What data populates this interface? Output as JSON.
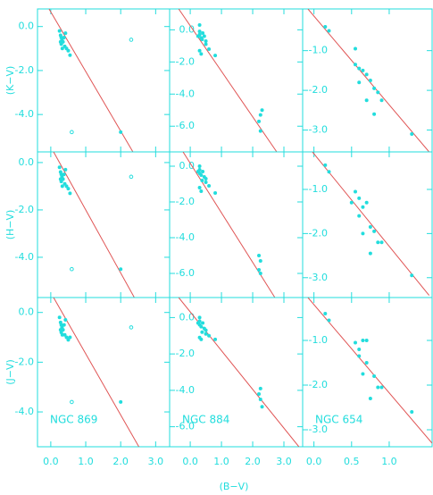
{
  "chart_data": [
    {
      "type": "scatter",
      "color": "#22dddd",
      "ylabel": "(K−V)",
      "x": [
        0.25,
        0.28,
        0.3,
        0.32,
        0.35,
        0.3,
        0.4,
        0.38,
        0.45,
        0.5,
        0.55,
        0.28,
        0.42,
        0.33,
        2.0
      ],
      "values": [
        -0.2,
        -0.4,
        -0.5,
        -0.6,
        -0.7,
        -0.8,
        -0.9,
        -0.5,
        -1.0,
        -1.1,
        -1.3,
        -0.7,
        -0.3,
        -1.0,
        -4.8
      ],
      "open": {
        "x": [
          2.3,
          0.6
        ],
        "values": [
          -0.6,
          -4.8
        ]
      },
      "fit": {
        "color": "#e05555",
        "x": [
          -0.05,
          2.35
        ],
        "values": [
          0.8,
          -5.7
        ]
      },
      "xlim": [
        -0.38,
        3.4
      ],
      "ylim": [
        -5.7,
        0.8
      ],
      "yticks": [
        {
          "value": 0,
          "label": "0.0"
        },
        {
          "value": -2,
          "label": "-2.0"
        },
        {
          "value": -4,
          "label": "-4.0"
        }
      ]
    },
    {
      "type": "scatter",
      "color": "#22dddd",
      "x": [
        0.3,
        0.3,
        0.3,
        0.35,
        0.4,
        0.45,
        0.5,
        0.35,
        0.3,
        0.6,
        0.8,
        0.5,
        0.25,
        0.38,
        2.25,
        2.2,
        2.3,
        2.25
      ],
      "values": [
        0.3,
        -0.1,
        -0.3,
        -0.5,
        -0.2,
        -0.4,
        -0.9,
        -1.5,
        -1.3,
        -1.2,
        -1.6,
        -0.7,
        -0.4,
        -0.6,
        -5.3,
        -5.7,
        -5.0,
        -6.3
      ],
      "fit": {
        "color": "#e05555",
        "x": [
          -0.37,
          2.77
        ],
        "values": [
          1.3,
          -7.6
        ]
      },
      "xlim": [
        -0.66,
        3.6
      ],
      "ylim": [
        -7.6,
        1.3
      ],
      "yticks": [
        {
          "value": 0,
          "label": "0.0"
        },
        {
          "value": -2,
          "label": "-2.0"
        },
        {
          "value": -4,
          "label": "-4.0"
        },
        {
          "value": -6,
          "label": "-6.0"
        }
      ]
    },
    {
      "type": "scatter",
      "color": "#22dddd",
      "x": [
        0.15,
        0.2,
        0.55,
        0.55,
        0.6,
        0.65,
        0.7,
        0.75,
        0.7,
        0.8,
        0.85,
        0.9,
        0.8,
        1.3,
        0.6
      ],
      "values": [
        -0.4,
        -0.5,
        -0.95,
        -1.35,
        -1.45,
        -1.5,
        -1.6,
        -1.75,
        -2.25,
        -1.95,
        -2.05,
        -2.25,
        -2.6,
        -3.1,
        -1.8
      ],
      "fit": {
        "color": "#e05555",
        "x": [
          -0.08,
          1.53
        ],
        "values": [
          0.05,
          -3.55
        ]
      },
      "xlim": [
        -0.15,
        1.57
      ],
      "ylim": [
        -3.55,
        0.05
      ],
      "yticks": [
        {
          "value": -1,
          "label": "-1.0"
        },
        {
          "value": -2,
          "label": "-2.0"
        },
        {
          "value": -3,
          "label": "-3.0"
        }
      ]
    },
    {
      "type": "scatter",
      "color": "#22dddd",
      "ylabel": "(H−V)",
      "x": [
        0.25,
        0.28,
        0.3,
        0.32,
        0.35,
        0.3,
        0.4,
        0.38,
        0.45,
        0.5,
        0.55,
        0.28,
        0.42,
        0.33,
        2.0
      ],
      "values": [
        -0.2,
        -0.4,
        -0.5,
        -0.6,
        -0.7,
        -0.8,
        -0.9,
        -0.5,
        -1.0,
        -1.1,
        -1.3,
        -0.7,
        -0.3,
        -1.0,
        -4.5
      ],
      "open": {
        "x": [
          2.3,
          0.6
        ],
        "values": [
          -0.6,
          -4.5
        ]
      },
      "fit": {
        "color": "#e05555",
        "x": [
          0.08,
          2.39
        ],
        "values": [
          0.45,
          -5.7
        ]
      },
      "xlim": [
        -0.38,
        3.4
      ],
      "ylim": [
        -5.7,
        0.45
      ],
      "yticks": [
        {
          "value": 0,
          "label": "0.0"
        },
        {
          "value": -2,
          "label": "-2.0"
        },
        {
          "value": -4,
          "label": "-4.0"
        }
      ]
    },
    {
      "type": "scatter",
      "color": "#22dddd",
      "x": [
        0.3,
        0.3,
        0.3,
        0.35,
        0.4,
        0.45,
        0.5,
        0.35,
        0.3,
        0.6,
        0.8,
        0.5,
        0.25,
        0.38,
        2.2,
        2.25,
        2.2,
        2.25
      ],
      "values": [
        0.0,
        -0.2,
        -0.4,
        -0.5,
        -0.3,
        -0.6,
        -0.9,
        -1.4,
        -1.2,
        -1.1,
        -1.5,
        -0.7,
        -0.3,
        -0.8,
        -5.0,
        -5.3,
        -5.8,
        -6.0
      ],
      "fit": {
        "color": "#e05555",
        "x": [
          -0.23,
          2.71
        ],
        "values": [
          0.8,
          -7.35
        ]
      },
      "xlim": [
        -0.66,
        3.6
      ],
      "ylim": [
        -7.35,
        0.8
      ],
      "yticks": [
        {
          "value": 0,
          "label": "0.0"
        },
        {
          "value": -2,
          "label": "-2.0"
        },
        {
          "value": -4,
          "label": "-4.0"
        },
        {
          "value": -6,
          "label": "-6.0"
        }
      ]
    },
    {
      "type": "scatter",
      "color": "#22dddd",
      "x": [
        0.15,
        0.2,
        0.55,
        0.5,
        0.6,
        0.65,
        0.7,
        0.6,
        0.65,
        0.75,
        0.8,
        0.85,
        0.9,
        0.75,
        1.3
      ],
      "values": [
        -0.45,
        -0.6,
        -1.05,
        -1.3,
        -1.2,
        -1.4,
        -1.3,
        -1.6,
        -2.0,
        -1.85,
        -1.95,
        -2.2,
        -2.2,
        -2.45,
        -2.95
      ],
      "fit": {
        "color": "#e05555",
        "x": [
          -0.02,
          1.53
        ],
        "values": [
          -0.15,
          -3.4
        ]
      },
      "xlim": [
        -0.15,
        1.57
      ],
      "ylim": [
        -3.45,
        -0.15
      ],
      "yticks": [
        {
          "value": -1,
          "label": "-1.0"
        },
        {
          "value": -2,
          "label": "-2.0"
        },
        {
          "value": -3,
          "label": "-3.0"
        }
      ]
    },
    {
      "type": "scatter",
      "color": "#22dddd",
      "ylabel": "(J−V)",
      "annotation": "NGC 869",
      "x": [
        0.25,
        0.28,
        0.3,
        0.32,
        0.35,
        0.3,
        0.4,
        0.38,
        0.45,
        0.5,
        0.55,
        0.28,
        0.42,
        0.33,
        2.0
      ],
      "values": [
        -0.2,
        -0.4,
        -0.5,
        -0.6,
        -0.7,
        -0.8,
        -0.9,
        -0.5,
        -1.0,
        -1.1,
        -1.0,
        -0.7,
        -0.3,
        -0.9,
        -3.6
      ],
      "open": {
        "x": [
          2.3,
          0.6
        ],
        "values": [
          -0.6,
          -3.6
        ]
      },
      "fit": {
        "color": "#e05555",
        "x": [
          0.08,
          2.52
        ],
        "values": [
          0.6,
          -5.4
        ]
      },
      "xlim": [
        -0.38,
        3.4
      ],
      "ylim": [
        -5.4,
        0.6
      ],
      "xticks": [
        {
          "value": 0,
          "label": "0.0"
        },
        {
          "value": 1,
          "label": "1.0"
        },
        {
          "value": 2,
          "label": "2.0"
        },
        {
          "value": 3,
          "label": "3.0"
        }
      ],
      "yticks": [
        {
          "value": 0,
          "label": "0.0"
        },
        {
          "value": -2,
          "label": "-2.0"
        },
        {
          "value": -4,
          "label": "-4.0"
        }
      ]
    },
    {
      "type": "scatter",
      "color": "#22dddd",
      "xlabel": "(B−V)",
      "annotation": "NGC 884",
      "x": [
        0.3,
        0.3,
        0.3,
        0.35,
        0.4,
        0.45,
        0.5,
        0.35,
        0.3,
        0.6,
        0.8,
        0.5,
        0.25,
        0.38,
        2.25,
        2.2,
        2.25,
        2.3
      ],
      "values": [
        0.0,
        -0.2,
        -0.4,
        -0.5,
        -0.3,
        -0.6,
        -0.9,
        -1.2,
        -1.1,
        -1.0,
        -1.2,
        -0.7,
        -0.3,
        -0.8,
        -3.9,
        -4.2,
        -4.5,
        -4.9
      ],
      "fit": {
        "color": "#e05555",
        "x": [
          -0.37,
          3.48
        ],
        "values": [
          1.1,
          -7.1
        ]
      },
      "xlim": [
        -0.66,
        3.6
      ],
      "ylim": [
        -7.1,
        1.1
      ],
      "xticks": [
        {
          "value": 0,
          "label": "0.0"
        },
        {
          "value": 1,
          "label": "1.0"
        },
        {
          "value": 2,
          "label": "2.0"
        },
        {
          "value": 3,
          "label": "3.0"
        }
      ],
      "yticks": [
        {
          "value": 0,
          "label": "0.0"
        },
        {
          "value": -2,
          "label": "-2.0"
        },
        {
          "value": -4,
          "label": "-4.0"
        },
        {
          "value": -6,
          "label": "-6.0"
        }
      ]
    },
    {
      "type": "scatter",
      "color": "#22dddd",
      "annotation": "NGC 654",
      "x": [
        0.15,
        0.2,
        0.55,
        0.6,
        0.65,
        0.7,
        0.6,
        0.7,
        0.65,
        0.8,
        0.85,
        0.9,
        0.75,
        1.3
      ],
      "values": [
        -0.4,
        -0.55,
        -1.05,
        -1.2,
        -1.0,
        -1.0,
        -1.35,
        -1.5,
        -1.75,
        -1.8,
        -2.05,
        -2.05,
        -2.3,
        -2.6
      ],
      "fit": {
        "color": "#e05555",
        "x": [
          -0.08,
          1.57
        ],
        "values": [
          -0.04,
          -3.3
        ]
      },
      "xlim": [
        -0.15,
        1.57
      ],
      "ylim": [
        -3.38,
        -0.04
      ],
      "xticks": [
        {
          "value": 0,
          "label": "0.0"
        },
        {
          "value": 0.5,
          "label": "0.5"
        },
        {
          "value": 1,
          "label": "1.0"
        }
      ],
      "yticks": [
        {
          "value": -1,
          "label": "-1.0"
        },
        {
          "value": -2,
          "label": "-2.0"
        },
        {
          "value": -3,
          "label": "-3.0"
        }
      ]
    }
  ]
}
